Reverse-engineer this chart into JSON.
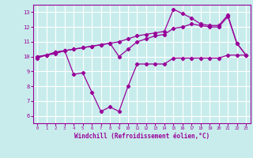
{
  "xlabel": "Windchill (Refroidissement éolien,°C)",
  "bg_color": "#c8ecec",
  "grid_color": "#ffffff",
  "line_color": "#990099",
  "xlim": [
    -0.5,
    23.5
  ],
  "ylim": [
    5.5,
    13.5
  ],
  "xticks": [
    0,
    1,
    2,
    3,
    4,
    5,
    6,
    7,
    8,
    9,
    10,
    11,
    12,
    13,
    14,
    15,
    16,
    17,
    18,
    19,
    20,
    21,
    22,
    23
  ],
  "yticks": [
    6,
    7,
    8,
    9,
    10,
    11,
    12,
    13
  ],
  "line1_x": [
    0,
    1,
    2,
    3,
    4,
    5,
    6,
    7,
    8,
    9,
    10,
    11,
    12,
    13,
    14,
    15,
    16,
    17,
    18,
    19,
    20,
    21,
    22,
    23
  ],
  "line1_y": [
    9.9,
    10.1,
    10.2,
    10.4,
    8.8,
    8.9,
    7.6,
    6.3,
    6.6,
    6.3,
    8.0,
    9.5,
    9.5,
    9.5,
    9.5,
    9.9,
    9.9,
    9.9,
    9.9,
    9.9,
    9.9,
    10.1,
    10.1,
    10.1
  ],
  "line2_x": [
    0,
    1,
    2,
    3,
    4,
    5,
    6,
    7,
    8,
    9,
    10,
    11,
    12,
    13,
    14,
    15,
    16,
    17,
    18,
    19,
    20,
    21,
    22,
    23
  ],
  "line2_y": [
    10.0,
    10.1,
    10.3,
    10.4,
    10.5,
    10.6,
    10.7,
    10.8,
    10.9,
    10.0,
    10.5,
    11.0,
    11.2,
    11.4,
    11.5,
    11.9,
    12.0,
    12.2,
    12.1,
    12.0,
    12.0,
    12.7,
    10.9,
    10.1
  ],
  "line3_x": [
    0,
    1,
    2,
    3,
    4,
    5,
    6,
    7,
    8,
    9,
    10,
    11,
    12,
    13,
    14,
    15,
    16,
    17,
    18,
    19,
    20,
    21,
    22,
    23
  ],
  "line3_y": [
    10.0,
    10.1,
    10.3,
    10.4,
    10.5,
    10.6,
    10.7,
    10.8,
    10.9,
    11.0,
    11.2,
    11.4,
    11.5,
    11.6,
    11.7,
    13.2,
    12.9,
    12.6,
    12.2,
    12.1,
    12.1,
    12.8,
    10.9,
    10.1
  ]
}
